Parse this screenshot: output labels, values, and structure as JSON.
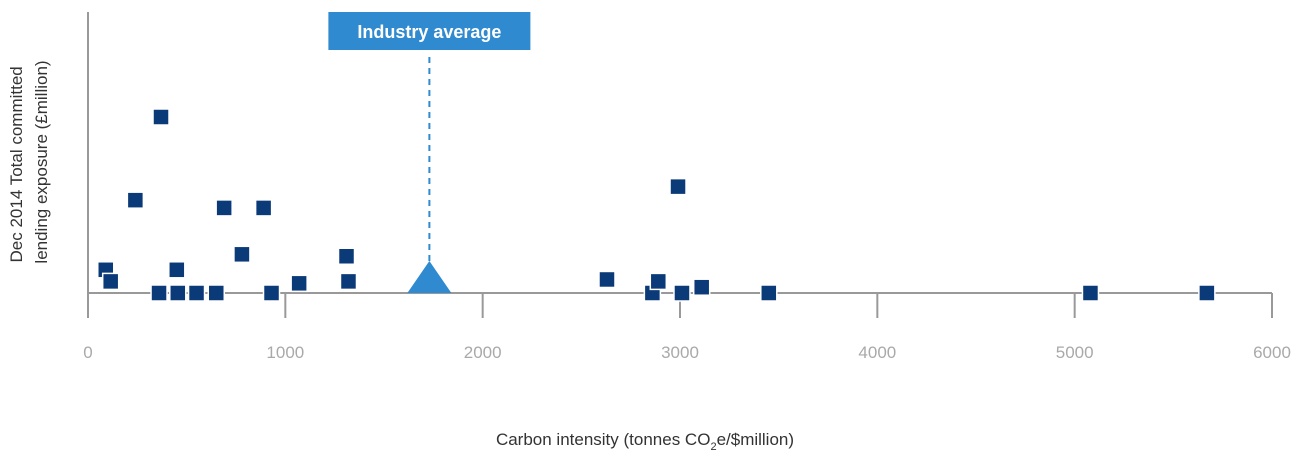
{
  "chart_data": {
    "type": "scatter",
    "xlabel_parts": [
      "Carbon intensity (tonnes CO",
      "2",
      "e/$million)"
    ],
    "ylabel_lines": [
      "Dec 2014 Total committed",
      "lending exposure (£million)"
    ],
    "xlim": [
      0,
      6000
    ],
    "ylim": [
      0,
      100
    ],
    "x_ticks": [
      0,
      1000,
      2000,
      3000,
      4000,
      5000,
      6000
    ],
    "grid": false,
    "legend": "none",
    "series": [
      {
        "marker": "square",
        "color": "#0b3a78",
        "points": [
          [
            90,
            12
          ],
          [
            115,
            6
          ],
          [
            240,
            48
          ],
          [
            360,
            0
          ],
          [
            370,
            91
          ],
          [
            450,
            12
          ],
          [
            455,
            0
          ],
          [
            550,
            0
          ],
          [
            650,
            0
          ],
          [
            690,
            44
          ],
          [
            780,
            20
          ],
          [
            890,
            44
          ],
          [
            930,
            0
          ],
          [
            1070,
            5
          ],
          [
            1310,
            19
          ],
          [
            1320,
            6
          ],
          [
            2630,
            7
          ],
          [
            2860,
            0
          ],
          [
            2890,
            6
          ],
          [
            2990,
            55
          ],
          [
            3010,
            0
          ],
          [
            3110,
            3
          ],
          [
            3450,
            0
          ],
          [
            5080,
            0
          ],
          [
            5670,
            0
          ]
        ]
      }
    ],
    "annotation": {
      "label": "Industry average",
      "x": 1730,
      "marker": "triangle",
      "color": "#2f8acf",
      "line_style": "dashed"
    }
  }
}
